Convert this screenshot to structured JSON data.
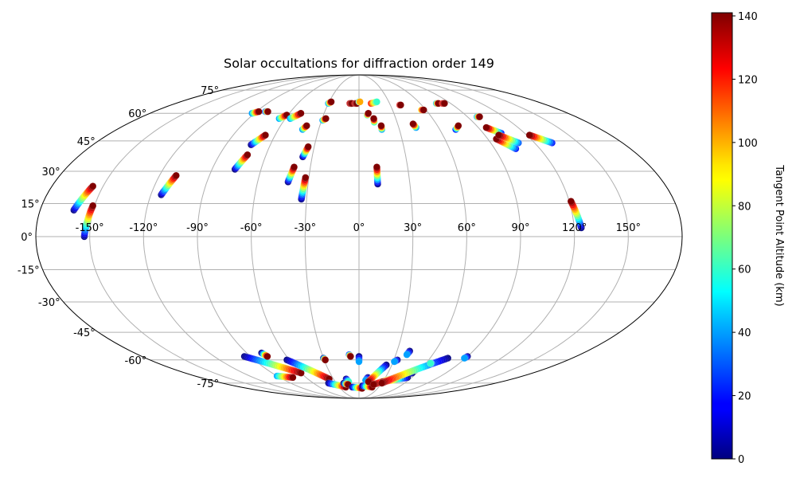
{
  "chart_data": {
    "type": "scatter",
    "projection": "mollweide",
    "title": "Solar occultations for diffraction order 149",
    "x_ticks": [
      -150,
      -120,
      -90,
      -60,
      -30,
      0,
      30,
      60,
      90,
      120,
      150
    ],
    "x_tick_labels": [
      "-150°",
      "-120°",
      "-90°",
      "-60°",
      "-30°",
      "0°",
      "30°",
      "60°",
      "90°",
      "120°",
      "150°"
    ],
    "y_ticks": [
      -75,
      -60,
      -45,
      -30,
      -15,
      0,
      15,
      30,
      45,
      60,
      75
    ],
    "y_tick_labels": [
      "-75°",
      "-60°",
      "-45°",
      "-30°",
      "-15°",
      "0°",
      "15°",
      "30°",
      "45°",
      "60°",
      "75°"
    ],
    "grid": true,
    "colorbar": {
      "label": "Tangent Point Altitude (km)",
      "range": [
        0,
        141
      ],
      "ticks": [
        0,
        20,
        40,
        60,
        80,
        100,
        120,
        140
      ],
      "tick_labels": [
        "0",
        "20",
        "40",
        "60",
        "80",
        "100",
        "120",
        "140"
      ],
      "colormap": "jet"
    },
    "tracks": [
      {
        "start": [
          -161,
          12
        ],
        "end": [
          -156,
          23
        ],
        "alt": [
          0,
          141
        ]
      },
      {
        "start": [
          -153,
          0
        ],
        "end": [
          -151,
          14
        ],
        "alt": [
          0,
          141
        ]
      },
      {
        "start": [
          -114,
          19
        ],
        "end": [
          -110,
          28
        ],
        "alt": [
          0,
          141
        ]
      },
      {
        "start": [
          -76,
          31
        ],
        "end": [
          -72,
          38
        ],
        "alt": [
          0,
          141
        ]
      },
      {
        "start": [
          -73,
          43
        ],
        "end": [
          -67,
          48
        ],
        "alt": [
          0,
          141
        ]
      },
      {
        "start": [
          -42,
          25
        ],
        "end": [
          -40,
          32
        ],
        "alt": [
          0,
          141
        ]
      },
      {
        "start": [
          -33,
          17
        ],
        "end": [
          -32,
          27
        ],
        "alt": [
          0,
          141
        ]
      },
      {
        "start": [
          -36,
          37
        ],
        "end": [
          -34,
          42
        ],
        "alt": [
          0,
          141
        ]
      },
      {
        "start": [
          11,
          24
        ],
        "end": [
          11,
          32
        ],
        "alt": [
          0,
          141
        ]
      },
      {
        "start": [
          124,
          4
        ],
        "end": [
          121,
          16
        ],
        "alt": [
          0,
          141
        ]
      },
      {
        "start": [
          -92,
          60
        ],
        "end": [
          -88,
          61
        ],
        "alt": [
          40,
          141
        ]
      },
      {
        "start": [
          -82,
          61
        ],
        "end": [
          -80,
          61
        ],
        "alt": [
          20,
          141
        ]
      },
      {
        "start": [
          -65,
          57
        ],
        "end": [
          -61,
          59
        ],
        "alt": [
          40,
          141
        ]
      },
      {
        "start": [
          -56,
          57
        ],
        "end": [
          -50,
          60
        ],
        "alt": [
          40,
          141
        ]
      },
      {
        "start": [
          -42,
          51
        ],
        "end": [
          -40,
          53
        ],
        "alt": [
          40,
          141
        ]
      },
      {
        "start": [
          -29,
          56
        ],
        "end": [
          -27,
          57
        ],
        "alt": [
          40,
          141
        ]
      },
      {
        "start": [
          -30,
          66
        ],
        "end": [
          -28,
          67
        ],
        "alt": [
          40,
          141
        ]
      },
      {
        "start": [
          -9,
          66
        ],
        "end": [
          -7,
          66
        ],
        "alt": [
          130,
          141
        ]
      },
      {
        "start": [
          -4,
          66
        ],
        "end": [
          -2,
          66
        ],
        "alt": [
          130,
          141
        ]
      },
      {
        "start": [
          0,
          67
        ],
        "end": [
          1,
          67
        ],
        "alt": [
          40,
          100
        ]
      },
      {
        "start": [
          7,
          59
        ],
        "end": [
          8,
          60
        ],
        "alt": [
          60,
          141
        ]
      },
      {
        "start": [
          12,
          55
        ],
        "end": [
          12,
          57
        ],
        "alt": [
          60,
          141
        ]
      },
      {
        "start": [
          17,
          51
        ],
        "end": [
          17,
          53
        ],
        "alt": [
          40,
          141
        ]
      },
      {
        "start": [
          12,
          66
        ],
        "end": [
          18,
          67
        ],
        "alt": [
          120,
          60
        ]
      },
      {
        "start": [
          43,
          52
        ],
        "end": [
          42,
          54
        ],
        "alt": [
          40,
          141
        ]
      },
      {
        "start": [
          39,
          65
        ],
        "end": [
          40,
          65
        ],
        "alt": [
          120,
          141
        ]
      },
      {
        "start": [
          56,
          62
        ],
        "end": [
          58,
          62
        ],
        "alt": [
          90,
          141
        ]
      },
      {
        "start": [
          76,
          66
        ],
        "end": [
          78,
          66
        ],
        "alt": [
          40,
          141
        ]
      },
      {
        "start": [
          82,
          66
        ],
        "end": [
          84,
          66
        ],
        "alt": [
          120,
          141
        ]
      },
      {
        "start": [
          72,
          51
        ],
        "end": [
          76,
          53
        ],
        "alt": [
          20,
          141
        ]
      },
      {
        "start": [
          98,
          58
        ],
        "end": [
          100,
          58
        ],
        "alt": [
          40,
          141
        ]
      },
      {
        "start": [
          103,
          49
        ],
        "end": [
          96,
          52
        ],
        "alt": [
          20,
          141
        ]
      },
      {
        "start": [
          104,
          41
        ],
        "end": [
          96,
          46
        ],
        "alt": [
          20,
          141
        ]
      },
      {
        "start": [
          109,
          44
        ],
        "end": [
          100,
          48
        ],
        "alt": [
          30,
          141
        ]
      },
      {
        "start": [
          132,
          44
        ],
        "end": [
          122,
          48
        ],
        "alt": [
          20,
          141
        ]
      },
      {
        "start": [
          -95,
          -58
        ],
        "end": [
          -60,
          -68
        ],
        "alt": [
          0,
          141
        ]
      },
      {
        "start": [
          -78,
          -56
        ],
        "end": [
          -76,
          -58
        ],
        "alt": [
          0,
          141
        ]
      },
      {
        "start": [
          -90,
          -70
        ],
        "end": [
          -75,
          -71
        ],
        "alt": [
          40,
          141
        ]
      },
      {
        "start": [
          -62,
          -60
        ],
        "end": [
          -35,
          -72
        ],
        "alt": [
          0,
          141
        ]
      },
      {
        "start": [
          -40,
          -75
        ],
        "end": [
          -20,
          -78
        ],
        "alt": [
          0,
          141
        ]
      },
      {
        "start": [
          -30,
          -59
        ],
        "end": [
          -29,
          -60
        ],
        "alt": [
          0,
          141
        ]
      },
      {
        "start": [
          -15,
          -72
        ],
        "end": [
          -13,
          -74
        ],
        "alt": [
          0,
          60
        ]
      },
      {
        "start": [
          -20,
          -75
        ],
        "end": [
          -15,
          -76
        ],
        "alt": [
          0,
          141
        ]
      },
      {
        "start": [
          -8,
          -57
        ],
        "end": [
          -7,
          -58
        ],
        "alt": [
          20,
          141
        ]
      },
      {
        "start": [
          0,
          -58
        ],
        "end": [
          0,
          -61
        ],
        "alt": [
          0,
          40
        ]
      },
      {
        "start": [
          -10,
          -78
        ],
        "end": [
          5,
          -79
        ],
        "alt": [
          0,
          141
        ]
      },
      {
        "start": [
          10,
          -71
        ],
        "end": [
          8,
          -73
        ],
        "alt": [
          0,
          40
        ]
      },
      {
        "start": [
          5,
          -77
        ],
        "end": [
          20,
          -78
        ],
        "alt": [
          0,
          141
        ]
      },
      {
        "start": [
          25,
          -63
        ],
        "end": [
          12,
          -74
        ],
        "alt": [
          0,
          141
        ]
      },
      {
        "start": [
          33,
          -60
        ],
        "end": [
          31,
          -61
        ],
        "alt": [
          0,
          40
        ]
      },
      {
        "start": [
          40,
          -55
        ],
        "end": [
          39,
          -57
        ],
        "alt": [
          0,
          40
        ]
      },
      {
        "start": [
          55,
          -68
        ],
        "end": [
          20,
          -76
        ],
        "alt": [
          0,
          141
        ]
      },
      {
        "start": [
          55,
          -71
        ],
        "end": [
          30,
          -74
        ],
        "alt": [
          0,
          141
        ]
      },
      {
        "start": [
          75,
          -59
        ],
        "end": [
          30,
          -75
        ],
        "alt": [
          0,
          141
        ]
      },
      {
        "start": [
          65,
          -62
        ],
        "end": [
          64,
          -62
        ],
        "alt": [
          20,
          60
        ]
      },
      {
        "start": [
          90,
          -58
        ],
        "end": [
          89,
          -59
        ],
        "alt": [
          0,
          40
        ]
      }
    ]
  }
}
